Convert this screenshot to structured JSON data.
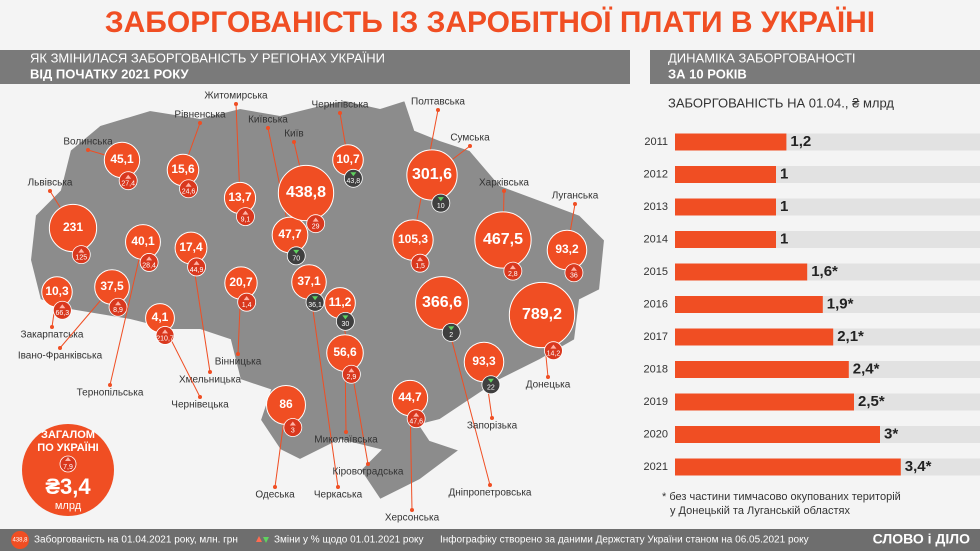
{
  "header": {
    "title": "ЗАБОРГОВАНІСТЬ ІЗ ЗАРОБІТНОЇ ПЛАТИ В УКРАЇНІ"
  },
  "map": {
    "heading": [
      "ЯК ЗМІНИЛАСЯ ЗАБОРГОВАНІСТЬ У РЕГІОНАХ УКРАЇНИ",
      "ВІД ПОЧАТКУ 2021 РОКУ"
    ],
    "regions": [
      {
        "name": "Волинська",
        "value": 45.1,
        "value_label": "45,1",
        "change": 27.4,
        "change_label": "27,4"
      },
      {
        "name": "Рівненська",
        "value": 15.6,
        "value_label": "15,6",
        "change": 24.6,
        "change_label": "24,6"
      },
      {
        "name": "Житомирська",
        "value": 13.7,
        "value_label": "13,7",
        "change": 9.1,
        "change_label": "9,1"
      },
      {
        "name": "Київська",
        "value": 47.7,
        "value_label": "47,7",
        "change": -70,
        "change_label": "70"
      },
      {
        "name": "Київ",
        "value": 438.8,
        "value_label": "438,8",
        "change": 29,
        "change_label": "29"
      },
      {
        "name": "Чернігівська",
        "value": 10.7,
        "value_label": "10,7",
        "change": -43.8,
        "change_label": "43,8"
      },
      {
        "name": "Полтавська",
        "value": 105.3,
        "value_label": "105,3",
        "change": 1.5,
        "change_label": "1,5"
      },
      {
        "name": "Сумська",
        "value": 301.6,
        "value_label": "301,6",
        "change": -10,
        "change_label": "10"
      },
      {
        "name": "Харківська",
        "value": 467.5,
        "value_label": "467,5",
        "change": 2.8,
        "change_label": "2,8"
      },
      {
        "name": "Луганська",
        "value": 93.2,
        "value_label": "93,2",
        "change": 36,
        "change_label": "36"
      },
      {
        "name": "Львівська",
        "value": 231,
        "change": 125,
        "change_label": "125"
      },
      {
        "name": "Закарпатська",
        "value": 10.3,
        "value_label": "10,3",
        "change": 66.3,
        "change_label": "66,3"
      },
      {
        "name": "Івано-Франківська",
        "value": 37.5,
        "value_label": "37,5",
        "change": 8.9,
        "change_label": "8,9"
      },
      {
        "name": "Тернопільська",
        "value": 40.1,
        "value_label": "40,1",
        "change": 28.4,
        "change_label": "28,4"
      },
      {
        "name": "Хмельницька",
        "value": 17.4,
        "value_label": "17,4",
        "change": 44.9,
        "change_label": "44,9"
      },
      {
        "name": "Чернівецька",
        "value": 4.1,
        "value_label": "4,1",
        "change": 210.7,
        "change_label": "210,7"
      },
      {
        "name": "Вінницька",
        "value": 20.7,
        "value_label": "20,7",
        "change": 1.4,
        "change_label": "1,4"
      },
      {
        "name": "Черкаська",
        "value": 37.1,
        "value_label": "37,1",
        "change": -36.1,
        "change_label": "36,1"
      },
      {
        "name": "Кіровоградська",
        "value": 11.2,
        "value_label": "11,2",
        "change": -30,
        "change_label": "30"
      },
      {
        "name": "Дніпропетровська",
        "value": 366.6,
        "value_label": "366,6",
        "change": -2,
        "change_label": "2"
      },
      {
        "name": "Донецька",
        "value": 789.2,
        "value_label": "789,2",
        "change": 14.2,
        "change_label": "14,2"
      },
      {
        "name": "Запорізька",
        "value": 93.3,
        "value_label": "93,3",
        "change": -22,
        "change_label": "22"
      },
      {
        "name": "Херсонська",
        "value": 44.7,
        "value_label": "44,7",
        "change": 47.6,
        "change_label": "47,6"
      },
      {
        "name": "Миколаївська",
        "value": 56.6,
        "value_label": "56,6",
        "change": 2.9,
        "change_label": "2,9"
      },
      {
        "name": "Одеська",
        "value": 86,
        "change": 3,
        "change_label": "3"
      }
    ],
    "total": {
      "heading": [
        "ЗАГАЛОМ",
        "ПО УКРАЇНІ"
      ],
      "change_label": "7,9",
      "value_label": "₴3,4",
      "unit": "млрд"
    }
  },
  "chart_data": {
    "type": "bar",
    "orientation": "horizontal",
    "heading": [
      "ДИНАМІКА ЗАБОРГОВАНОСТІ",
      "ЗА 10 РОКІВ"
    ],
    "title": "ЗАБОРГОВАНІСТЬ НА 01.04., ₴ млрд",
    "categories": [
      "2011",
      "2012",
      "2013",
      "2014",
      "2015",
      "2016",
      "2017",
      "2018",
      "2019",
      "2020",
      "2021"
    ],
    "values": [
      1.2,
      1,
      1,
      1,
      1.6,
      1.9,
      2.1,
      2.4,
      2.5,
      3,
      3.4
    ],
    "value_labels": [
      "1,2",
      "1",
      "1",
      "1",
      "1,6*",
      "1,9*",
      "2,1*",
      "2,4*",
      "2,5*",
      "3*",
      "3,4*"
    ],
    "color": "#f04e23",
    "note": [
      "* без частини тимчасово окупованих територій",
      "у Донецькій та Луганській областях"
    ]
  },
  "footer": {
    "legend_value": "438,8",
    "legend_value_text": "Заборгованість на 01.04.2021 року, млн. грн",
    "legend_change_text": "Зміни у % щодо 01.01.2021 року",
    "source": "Інфографіку створено за даними Держстату України станом на 06.05.2021 року",
    "brand": "СЛОВО і ДІЛО"
  }
}
